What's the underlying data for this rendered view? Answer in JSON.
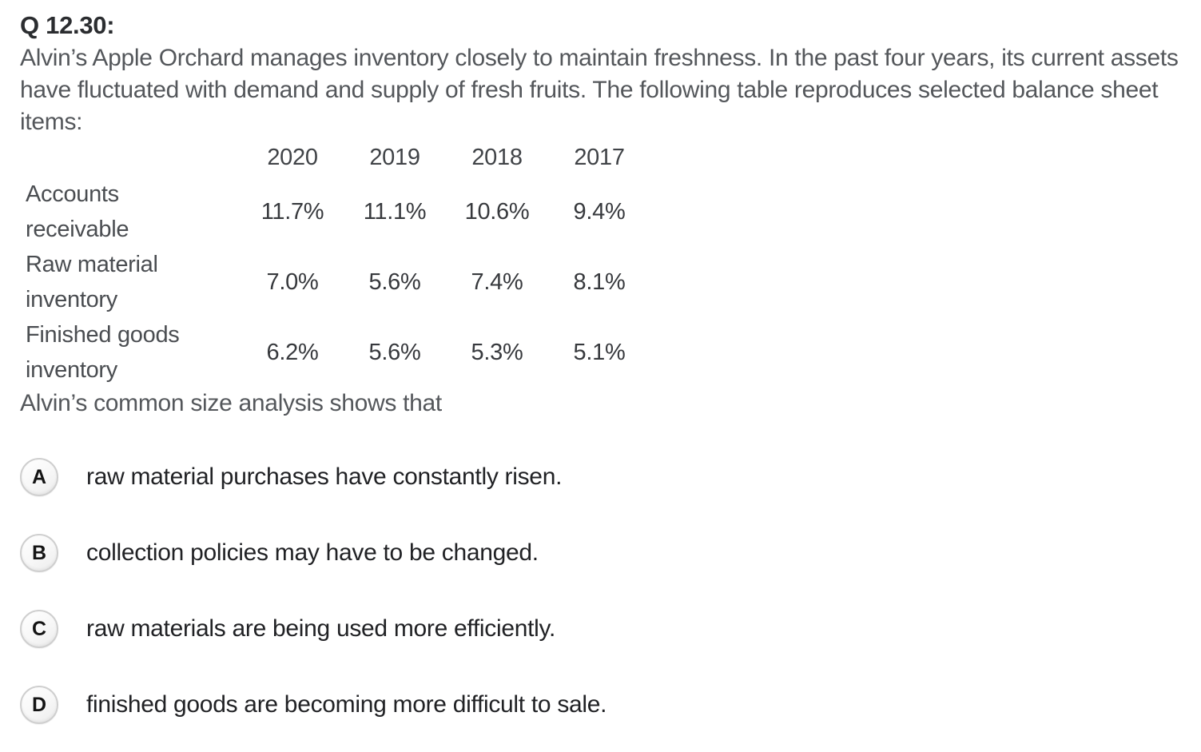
{
  "question": {
    "number_label": "Q 12.30:",
    "text": "Alvin’s Apple Orchard manages inventory closely to maintain freshness. In the past four years, its current assets have fluctuated with demand and supply of fresh fruits. The following table reproduces selected balance sheet items:",
    "lead_in": "Alvin’s common size analysis shows that"
  },
  "table": {
    "column_headers": [
      "2020",
      "2019",
      "2018",
      "2017"
    ],
    "rows": [
      {
        "label": "Accounts receivable",
        "values": [
          "11.7%",
          "11.1%",
          "10.6%",
          "9.4%"
        ]
      },
      {
        "label": "Raw material inventory",
        "values": [
          "7.0%",
          "5.6%",
          "7.4%",
          "8.1%"
        ]
      },
      {
        "label": "Finished goods inventory",
        "values": [
          "6.2%",
          "5.6%",
          "5.3%",
          "5.1%"
        ]
      }
    ]
  },
  "options": [
    {
      "letter": "A",
      "text": "raw material purchases have constantly risen."
    },
    {
      "letter": "B",
      "text": "collection policies may have to be changed."
    },
    {
      "letter": "C",
      "text": "raw materials are being used more efficiently."
    },
    {
      "letter": "D",
      "text": "finished goods are becoming more difficult to sale."
    }
  ],
  "colors": {
    "background": "#ffffff",
    "title_text": "#2b2d30",
    "body_text": "#54575b",
    "table_text": "#404347",
    "option_text": "#212225",
    "option_badge_border": "#cfcfcf"
  }
}
